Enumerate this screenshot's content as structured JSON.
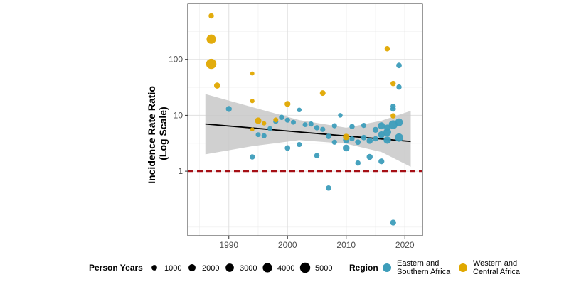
{
  "chart_data": {
    "type": "scatter",
    "ylabel_lines": [
      "Incidence Rate Ratio",
      "(Log Scale)"
    ],
    "xlabel": "",
    "x_ticks": [
      1990,
      2000,
      2010,
      2020
    ],
    "x_tick_labels": [
      "1990",
      "2000",
      "2010",
      "2020"
    ],
    "xlim": [
      1983,
      2023
    ],
    "y_scale": "log",
    "ylim": [
      0.07,
      1000
    ],
    "y_ticks": [
      1,
      10,
      100
    ],
    "y_tick_labels": [
      "1",
      "10",
      "100"
    ],
    "y_minor_ticks": [
      0.1,
      3.16,
      31.6,
      316
    ],
    "grid": true,
    "reference_line": {
      "y": 1,
      "color": "#a50f15",
      "style": "dashed"
    },
    "trend_line": {
      "x": [
        1986,
        2021
      ],
      "y": [
        7.0,
        3.4
      ]
    },
    "confidence_band": {
      "x": [
        1986,
        1994,
        2002,
        2010,
        2016,
        2021
      ],
      "lower": [
        2.0,
        2.8,
        3.6,
        3.1,
        2.2,
        1.2
      ],
      "upper": [
        24.0,
        14.0,
        8.2,
        6.0,
        8.0,
        12.0
      ]
    },
    "series": [
      {
        "name": "Eastern and\nSouthern Africa",
        "color": "#3d9dba",
        "points": [
          {
            "x": 1990,
            "y": 13,
            "py": 1200
          },
          {
            "x": 1994,
            "y": 1.8,
            "py": 900
          },
          {
            "x": 1995,
            "y": 4.5,
            "py": 700
          },
          {
            "x": 1996,
            "y": 4.3,
            "py": 800
          },
          {
            "x": 1997,
            "y": 5.8,
            "py": 700
          },
          {
            "x": 1998,
            "y": 7.8,
            "py": 800
          },
          {
            "x": 1999,
            "y": 9.2,
            "py": 900
          },
          {
            "x": 2000,
            "y": 2.6,
            "py": 1000
          },
          {
            "x": 2000,
            "y": 8.2,
            "py": 800
          },
          {
            "x": 2001,
            "y": 7.5,
            "py": 700
          },
          {
            "x": 2002,
            "y": 12.5,
            "py": 600
          },
          {
            "x": 2002,
            "y": 3.0,
            "py": 800
          },
          {
            "x": 2003,
            "y": 6.8,
            "py": 700
          },
          {
            "x": 2004,
            "y": 7.0,
            "py": 800
          },
          {
            "x": 2005,
            "y": 6.0,
            "py": 900
          },
          {
            "x": 2005,
            "y": 1.9,
            "py": 900
          },
          {
            "x": 2006,
            "y": 5.6,
            "py": 800
          },
          {
            "x": 2007,
            "y": 0.5,
            "py": 900
          },
          {
            "x": 2007,
            "y": 4.2,
            "py": 1000
          },
          {
            "x": 2008,
            "y": 6.5,
            "py": 800
          },
          {
            "x": 2008,
            "y": 3.3,
            "py": 800
          },
          {
            "x": 2009,
            "y": 10,
            "py": 600
          },
          {
            "x": 2010,
            "y": 3.6,
            "py": 1500
          },
          {
            "x": 2010,
            "y": 2.6,
            "py": 1800
          },
          {
            "x": 2011,
            "y": 3.8,
            "py": 800
          },
          {
            "x": 2011,
            "y": 6.3,
            "py": 900
          },
          {
            "x": 2012,
            "y": 3.3,
            "py": 1000
          },
          {
            "x": 2012,
            "y": 1.4,
            "py": 900
          },
          {
            "x": 2013,
            "y": 4.0,
            "py": 1000
          },
          {
            "x": 2013,
            "y": 6.6,
            "py": 800
          },
          {
            "x": 2014,
            "y": 3.5,
            "py": 1400
          },
          {
            "x": 2014,
            "y": 1.8,
            "py": 1300
          },
          {
            "x": 2015,
            "y": 5.5,
            "py": 1200
          },
          {
            "x": 2015,
            "y": 3.8,
            "py": 900
          },
          {
            "x": 2016,
            "y": 4.5,
            "py": 1800
          },
          {
            "x": 2016,
            "y": 6.5,
            "py": 2000
          },
          {
            "x": 2016,
            "y": 1.5,
            "py": 1200
          },
          {
            "x": 2017,
            "y": 6.0,
            "py": 1500
          },
          {
            "x": 2017,
            "y": 3.6,
            "py": 2200
          },
          {
            "x": 2017,
            "y": 5.0,
            "py": 2500
          },
          {
            "x": 2018,
            "y": 6.8,
            "py": 3500
          },
          {
            "x": 2018,
            "y": 13,
            "py": 1000
          },
          {
            "x": 2018,
            "y": 14.5,
            "py": 900
          },
          {
            "x": 2018,
            "y": 0.12,
            "py": 1200
          },
          {
            "x": 2019,
            "y": 4.0,
            "py": 3000
          },
          {
            "x": 2019,
            "y": 32,
            "py": 900
          },
          {
            "x": 2019,
            "y": 78,
            "py": 1000
          },
          {
            "x": 2019,
            "y": 7.5,
            "py": 2500
          }
        ]
      },
      {
        "name": "Western and\nCentral Africa",
        "color": "#e0a800",
        "points": [
          {
            "x": 1987,
            "y": 600,
            "py": 900
          },
          {
            "x": 1987,
            "y": 230,
            "py": 4000
          },
          {
            "x": 1987,
            "y": 83,
            "py": 5000
          },
          {
            "x": 1988,
            "y": 34,
            "py": 1300
          },
          {
            "x": 1994,
            "y": 56,
            "py": 400
          },
          {
            "x": 1994,
            "y": 18,
            "py": 500
          },
          {
            "x": 1994,
            "y": 5.6,
            "py": 400
          },
          {
            "x": 1995,
            "y": 8.0,
            "py": 1600
          },
          {
            "x": 1996,
            "y": 7.2,
            "py": 500
          },
          {
            "x": 1998,
            "y": 8.3,
            "py": 700
          },
          {
            "x": 2000,
            "y": 16,
            "py": 1200
          },
          {
            "x": 2006,
            "y": 25,
            "py": 1100
          },
          {
            "x": 2010,
            "y": 4.1,
            "py": 1600
          },
          {
            "x": 2017,
            "y": 155,
            "py": 900
          },
          {
            "x": 2018,
            "y": 37,
            "py": 900
          },
          {
            "x": 2018,
            "y": 9.8,
            "py": 900
          }
        ]
      }
    ],
    "legend": {
      "position": "bottom",
      "size_title": "Person Years",
      "size_entries": [
        {
          "label": "1000",
          "py": 1000
        },
        {
          "label": "2000",
          "py": 2000
        },
        {
          "label": "3000",
          "py": 3000
        },
        {
          "label": "4000",
          "py": 4000
        },
        {
          "label": "5000",
          "py": 5000
        }
      ],
      "color_title": "Region",
      "color_entries": [
        {
          "lines": [
            "Eastern and",
            "Southern Africa"
          ],
          "color": "#3d9dba"
        },
        {
          "lines": [
            "Western and",
            "Central Africa"
          ],
          "color": "#e0a800"
        }
      ]
    }
  }
}
